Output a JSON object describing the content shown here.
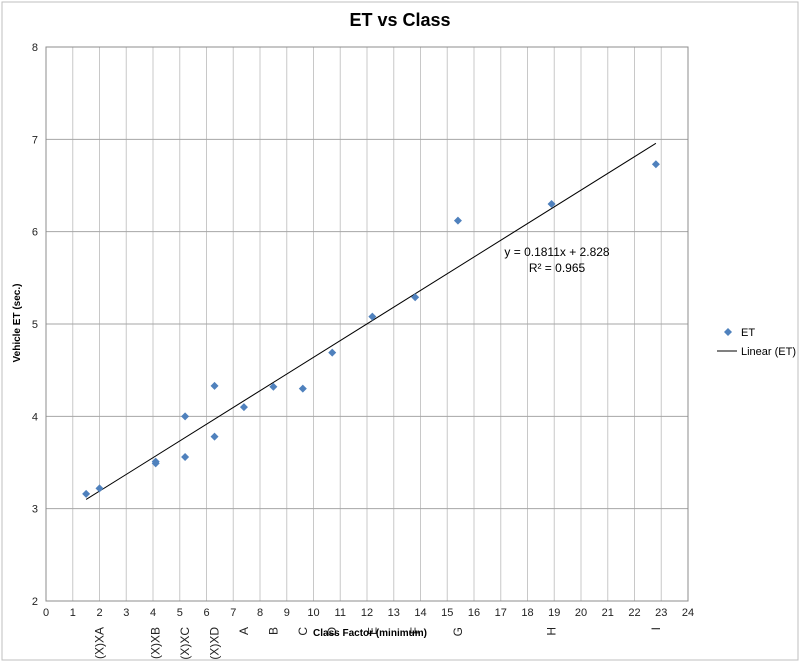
{
  "chart_data": {
    "type": "scatter",
    "title": "ET vs Class",
    "xlabel": "Class Factor (minimum)",
    "ylabel": "Vehicle ET (sec.)",
    "xlim": [
      0,
      24
    ],
    "ylim": [
      2,
      8
    ],
    "xticks": [
      0,
      1,
      2,
      3,
      4,
      5,
      6,
      7,
      8,
      9,
      10,
      11,
      12,
      13,
      14,
      15,
      16,
      17,
      18,
      19,
      20,
      21,
      22,
      23,
      24
    ],
    "yticks": [
      2,
      3,
      4,
      5,
      6,
      7,
      8
    ],
    "grid": true,
    "legend_position": "right",
    "series": [
      {
        "name": "ET",
        "color": "#4F81BD",
        "marker": "diamond",
        "points": [
          {
            "x": 1.5,
            "y": 3.16
          },
          {
            "x": 2.0,
            "y": 3.22
          },
          {
            "x": 4.1,
            "y": 3.49
          },
          {
            "x": 4.1,
            "y": 3.51
          },
          {
            "x": 5.2,
            "y": 3.56
          },
          {
            "x": 5.2,
            "y": 4.0
          },
          {
            "x": 6.3,
            "y": 3.78
          },
          {
            "x": 6.3,
            "y": 4.33
          },
          {
            "x": 7.4,
            "y": 4.1
          },
          {
            "x": 8.5,
            "y": 4.32
          },
          {
            "x": 9.6,
            "y": 4.3
          },
          {
            "x": 10.7,
            "y": 4.69
          },
          {
            "x": 12.2,
            "y": 5.08
          },
          {
            "x": 13.8,
            "y": 5.29
          },
          {
            "x": 15.4,
            "y": 6.12
          },
          {
            "x": 18.9,
            "y": 6.3
          },
          {
            "x": 22.8,
            "y": 6.73
          }
        ]
      }
    ],
    "trendline": {
      "name": "Linear (ET)",
      "type": "linear",
      "color": "#000000",
      "slope": 0.1811,
      "intercept": 2.828,
      "x_range": [
        1.5,
        22.8
      ],
      "equation": "y = 0.1811x + 2.828",
      "r_squared_label": "R² = 0.965"
    },
    "category_labels": [
      {
        "x": 2.0,
        "label": "(X)XA"
      },
      {
        "x": 4.1,
        "label": "(X)XB"
      },
      {
        "x": 5.2,
        "label": "(X)XC"
      },
      {
        "x": 6.3,
        "label": "(X)XD"
      },
      {
        "x": 7.4,
        "label": "A"
      },
      {
        "x": 8.5,
        "label": "B"
      },
      {
        "x": 9.6,
        "label": "C"
      },
      {
        "x": 10.7,
        "label": "D"
      },
      {
        "x": 12.2,
        "label": "E"
      },
      {
        "x": 13.8,
        "label": "F"
      },
      {
        "x": 15.4,
        "label": "G"
      },
      {
        "x": 18.9,
        "label": "H"
      },
      {
        "x": 22.8,
        "label": "I"
      }
    ]
  }
}
